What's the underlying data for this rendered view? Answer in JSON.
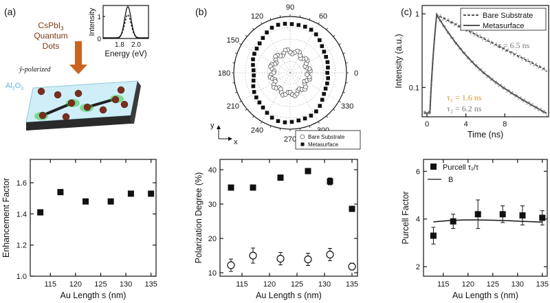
{
  "panel_labels": [
    "(a)",
    "(b)",
    "(c)"
  ],
  "schematic": {
    "title_line1": "CsPbI",
    "title_sub": "3",
    "title_line2": "Quantum",
    "title_line3": "Dots",
    "polarization_label": "ŷ-polarized",
    "substrate_label": "Al",
    "substrate_sub1": "2",
    "substrate_mid": "O",
    "substrate_sub2": "3",
    "colors": {
      "arrow": "#c8641e",
      "substrate_top": "#cfeef7",
      "substrate_side": "#2a2a2a",
      "dot": "#7a2e1e",
      "glow": "#3cc83c",
      "title": "#7a3a14",
      "substrate_text": "#5ab4dc"
    }
  },
  "chart_data": [
    {
      "id": "inset-spectrum",
      "type": "line",
      "xlabel": "Energy (eV)",
      "ylabel": "Intensity",
      "xlim": [
        1.6,
        2.15
      ],
      "ylim": [
        0,
        1.5
      ],
      "xticks": [
        "1.8",
        "2.0"
      ],
      "yticks": [
        "0",
        "1"
      ],
      "series": [
        {
          "style": "solid",
          "center": 1.9,
          "width": 0.055,
          "peak": 1.42
        },
        {
          "style": "dashed",
          "center": 1.9,
          "width": 0.055,
          "peak": 1.05
        }
      ]
    },
    {
      "id": "enhancement",
      "type": "scatter",
      "xlabel": "Au Length s (nm)",
      "ylabel": "Enhancement Factor",
      "xlim": [
        111,
        136
      ],
      "ylim": [
        1.0,
        1.75
      ],
      "xticks": [
        115,
        120,
        125,
        130,
        135
      ],
      "yticks": [
        1.0,
        1.2,
        1.4,
        1.6
      ],
      "x": [
        113,
        117,
        122,
        127,
        131,
        135
      ],
      "values": [
        1.41,
        1.54,
        1.48,
        1.48,
        1.53,
        1.53
      ]
    },
    {
      "id": "polar",
      "type": "scatter",
      "angle_ticks": [
        "90",
        "60",
        "0",
        "330",
        "300",
        "270",
        "240",
        "210",
        "180",
        "150",
        "120"
      ],
      "angle_tick_degrees": [
        90,
        60,
        0,
        330,
        300,
        270,
        240,
        210,
        180,
        150,
        120
      ],
      "legend": [
        "Bare Substrate",
        "Metasurface"
      ],
      "axis_x": "x",
      "axis_y": "y",
      "series": [
        {
          "name": "Bare Substrate",
          "marker": "open-circle",
          "a": 0.32,
          "b": 0.06
        },
        {
          "name": "Metasurface",
          "marker": "filled-square",
          "a": 0.66,
          "b": 0.22
        }
      ]
    },
    {
      "id": "polarization-degree",
      "type": "scatter",
      "xlabel": "Au Length s (nm)",
      "ylabel": "Polarization Degree (%)",
      "xlim": [
        111,
        136
      ],
      "ylim": [
        9,
        43
      ],
      "xticks": [
        115,
        120,
        125,
        130,
        135
      ],
      "yticks": [
        10,
        20,
        30,
        40
      ],
      "x": [
        113,
        117,
        122,
        127,
        131,
        135
      ],
      "series": [
        {
          "name": "Metasurface",
          "values": [
            34.8,
            34.8,
            37.7,
            39.6,
            36.6,
            28.6
          ],
          "errors": [
            0.5,
            0.5,
            0.5,
            0.7,
            1.0,
            0.5
          ]
        },
        {
          "name": "Bare Substrate",
          "values": [
            12.2,
            15.0,
            14.1,
            13.9,
            15.3,
            11.8
          ],
          "errors": [
            1.8,
            2.2,
            1.8,
            1.8,
            1.8,
            1.0
          ]
        }
      ]
    },
    {
      "id": "decay",
      "type": "line",
      "xlabel": "Time (ns)",
      "ylabel": "Intensity (a.u.)",
      "xlim": [
        -0.5,
        12.5
      ],
      "ylim_log": [
        0.04,
        1.3
      ],
      "xticks": [
        0,
        4,
        8
      ],
      "yticks": [
        "0.1",
        "1"
      ],
      "legend": [
        "Bare Substrate",
        "Metasurface"
      ],
      "annotations": {
        "tau_bare": "τ = 6.5 ns",
        "tau1": "τ₁ = 1.6 ns",
        "tau2": "τ₂ = 6.2 ns"
      },
      "series": [
        {
          "name": "Bare Substrate",
          "style": "dashed",
          "tau": 6.5
        },
        {
          "name": "Metasurface",
          "style": "solid",
          "tau1": 1.6,
          "tau2": 6.2,
          "ratio": 0.72
        }
      ],
      "colors": {
        "tau1": "#e0902a",
        "tau_gray": "#777777",
        "data": "#555555"
      }
    },
    {
      "id": "purcell",
      "type": "scatter",
      "xlabel": "Au Length s (nm)",
      "ylabel": "Purcell Factor",
      "xlim": [
        111,
        136
      ],
      "ylim": [
        1.6,
        6.5
      ],
      "xticks": [
        115,
        120,
        125,
        130,
        135
      ],
      "yticks": [
        2,
        4,
        6
      ],
      "legend": [
        "Purcell τ₁/τ",
        "B"
      ],
      "x": [
        113,
        117,
        122,
        127,
        131,
        135
      ],
      "values": [
        3.3,
        3.9,
        4.2,
        4.2,
        4.15,
        4.05
      ],
      "errors": [
        0.35,
        0.3,
        0.6,
        0.35,
        0.4,
        0.3
      ],
      "fit": {
        "x": [
          113,
          116,
          119,
          122,
          125,
          128,
          131,
          135
        ],
        "y": [
          3.88,
          3.93,
          3.96,
          3.96,
          3.95,
          3.93,
          3.9,
          3.87
        ]
      }
    }
  ]
}
